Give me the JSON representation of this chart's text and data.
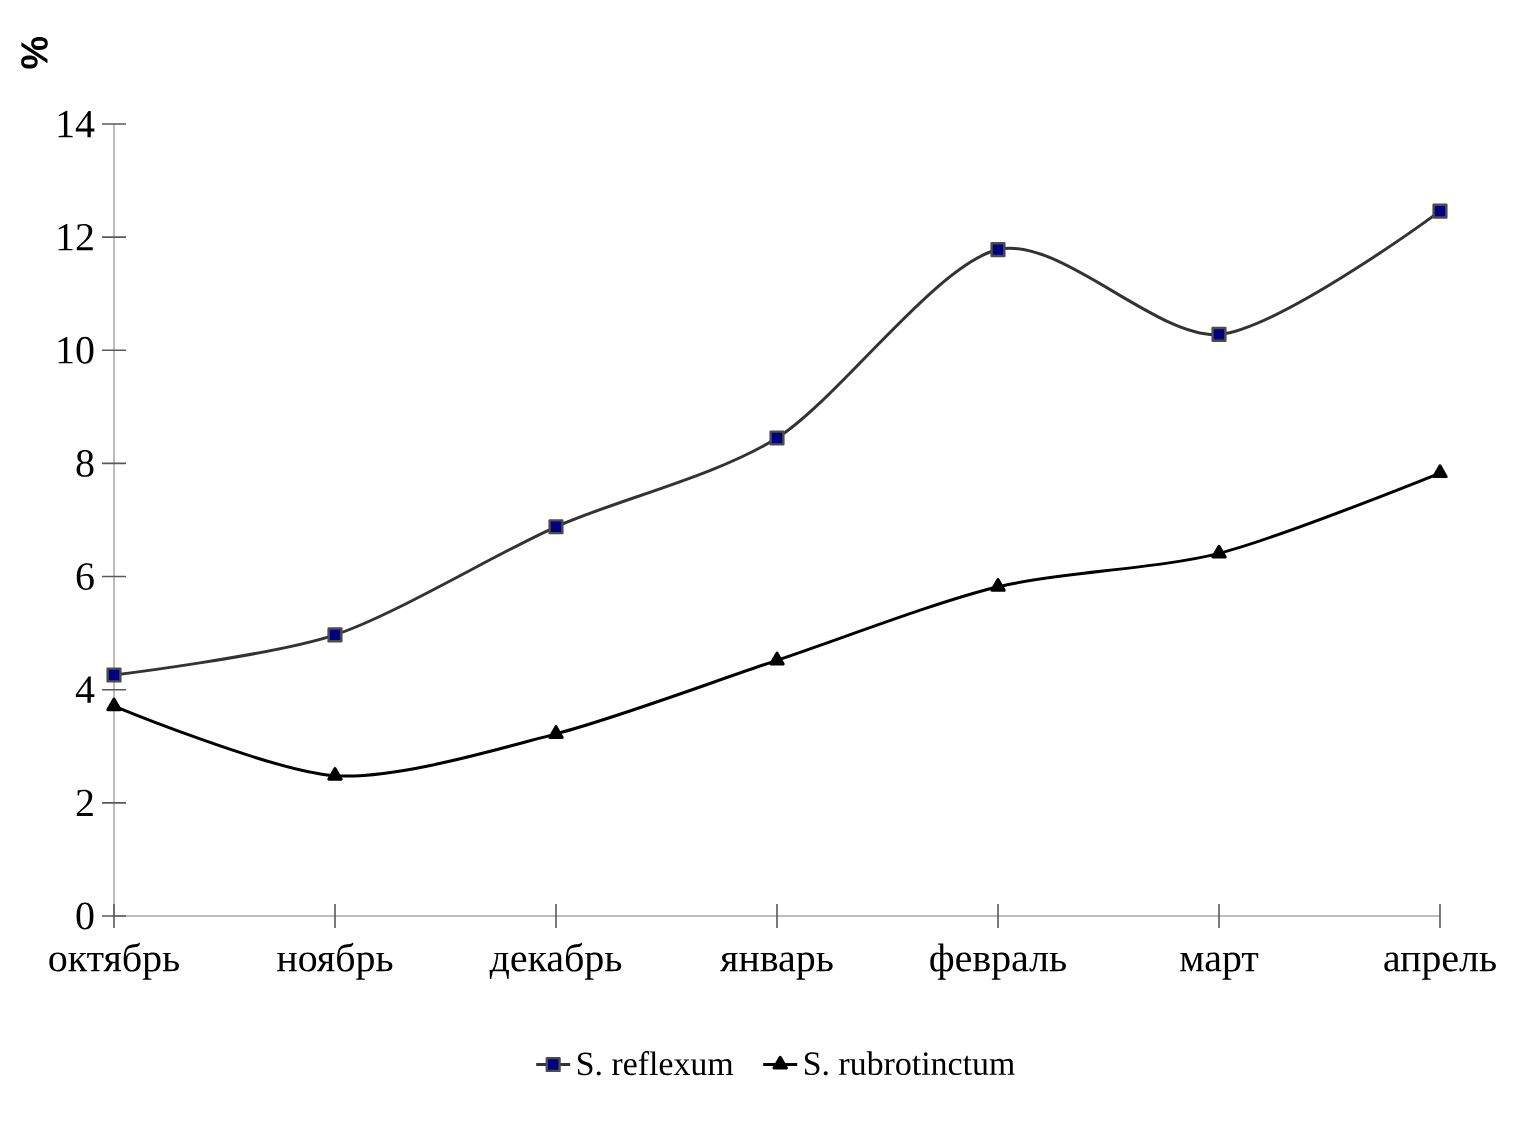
{
  "chart_data": {
    "type": "line",
    "ylabel": "%",
    "categories": [
      "октябрь",
      "ноябрь",
      "декабрь",
      "январь",
      "февраль",
      "март",
      "апрель"
    ],
    "ylim": [
      0,
      14
    ],
    "yticks": [
      0,
      2,
      4,
      6,
      8,
      10,
      12,
      14
    ],
    "legend": "bottom",
    "grid": false,
    "series": [
      {
        "name": "S. reflexum",
        "color": "#333333",
        "marker": "square",
        "values": [
          4.26,
          4.97,
          6.88,
          8.45,
          11.78,
          10.28,
          12.46
        ]
      },
      {
        "name": "S. rubrotinctum",
        "color": "#000000",
        "marker": "triangle",
        "values": [
          3.71,
          2.48,
          3.22,
          4.52,
          5.82,
          6.41,
          7.83
        ]
      }
    ]
  }
}
